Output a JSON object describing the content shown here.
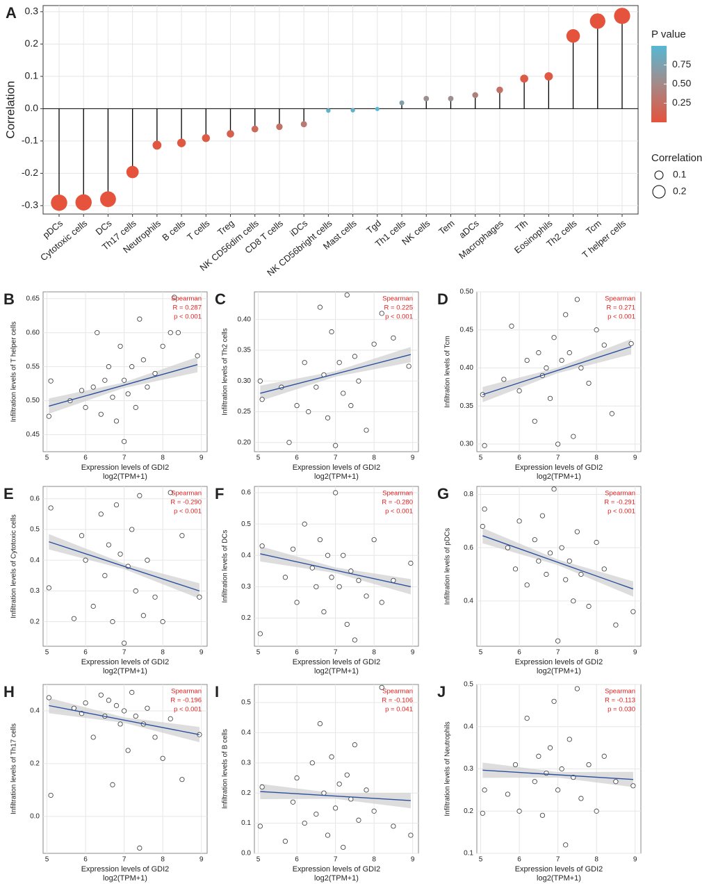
{
  "chart_data": [
    {
      "type": "lollipop",
      "panel": "A",
      "y_label": "Correlation",
      "categories": [
        "pDCs",
        "Cytotoxic cells",
        "DCs",
        "Th17 cells",
        "Neutrophils",
        "B cells",
        "T cells",
        "Treg",
        "NK CD56dim cells",
        "CD8 T cells",
        "iDCs",
        "NK CD56bright cells",
        "Mast cells",
        "Tgd",
        "Th1 cells",
        "NK cells",
        "Tem",
        "aDCs",
        "Macrophages",
        "Tfh",
        "Eosinophils",
        "Th2 cells",
        "Tcm",
        "T helper cells"
      ],
      "values": [
        -0.291,
        -0.29,
        -0.28,
        -0.196,
        -0.113,
        -0.106,
        -0.091,
        -0.078,
        -0.063,
        -0.056,
        -0.048,
        -0.006,
        -0.005,
        -0.001,
        0.018,
        0.031,
        0.031,
        0.042,
        0.058,
        0.093,
        0.1,
        0.225,
        0.271,
        0.287
      ],
      "pvalues": [
        0.0,
        0.0,
        0.0,
        0.0,
        0.03,
        0.04,
        0.07,
        0.12,
        0.2,
        0.27,
        0.35,
        0.91,
        0.92,
        0.99,
        0.72,
        0.55,
        0.55,
        0.41,
        0.27,
        0.07,
        0.05,
        0.0,
        0.0,
        0.0
      ],
      "ylim": [
        -0.326,
        0.319
      ],
      "yticks": [
        -0.3,
        -0.2,
        -0.1,
        {
          "value": 0,
          "label": "0.0"
        },
        0.1,
        0.2,
        0.3
      ],
      "colormap": [
        "#e5533c",
        "#a48a88",
        "#56b8d4"
      ],
      "plim": [
        0,
        1
      ],
      "color_legend_title": "P value",
      "color_legend_ticks": [
        0.25,
        {
          "value": 0.5,
          "label": "0.50"
        },
        0.75
      ],
      "size_legend_title": "Correlation",
      "size_legend_ticks": [
        0.1,
        0.2
      ],
      "grid": true
    },
    {
      "type": "scatter",
      "panel": "B",
      "y_label": "Infiltration levels of T helper cells",
      "x_label": "Expression levels of GDI2",
      "x_sublabel": "log2(TPM+1)",
      "annotations": [
        "Spearman",
        "R = 0.287",
        "p < 0.001"
      ],
      "x": [
        5.05,
        5.1,
        5.6,
        5.9,
        6.0,
        6.2,
        6.3,
        6.4,
        6.5,
        6.6,
        6.7,
        6.8,
        6.9,
        7.0,
        7.0,
        7.1,
        7.2,
        7.3,
        7.4,
        7.5,
        7.6,
        7.8,
        8.0,
        8.2,
        8.3,
        8.4,
        8.9
      ],
      "y": [
        0.477,
        0.529,
        0.5,
        0.515,
        0.49,
        0.52,
        0.6,
        0.48,
        0.53,
        0.55,
        0.505,
        0.47,
        0.58,
        0.44,
        0.53,
        0.51,
        0.55,
        0.49,
        0.62,
        0.56,
        0.52,
        0.54,
        0.58,
        0.6,
        0.652,
        0.6,
        0.566
      ],
      "fit": {
        "x": [
          5.05,
          8.9
        ],
        "y": [
          0.492,
          0.553
        ]
      },
      "xlim": [
        4.9,
        9.15
      ],
      "xticks": [
        5,
        6,
        7,
        8,
        9
      ],
      "ylim": [
        0.425,
        0.66
      ],
      "yticks": [
        0.45,
        {
          "value": 0.5,
          "label": "0.50"
        },
        0.55,
        {
          "value": 0.6,
          "label": "0.60"
        },
        0.65
      ],
      "point_color": "#333333",
      "line_color": "#2a4fa0",
      "annotation_color": "#e02020"
    },
    {
      "type": "scatter",
      "panel": "C",
      "y_label": "Infiltration levels of Th2 cells",
      "x_label": "Expression levels of GDI2",
      "x_sublabel": "log2(TPM+1)",
      "annotations": [
        "Spearman",
        "R = 0.225",
        "p < 0.001"
      ],
      "x": [
        5.05,
        5.1,
        5.6,
        5.8,
        6.0,
        6.2,
        6.3,
        6.5,
        6.6,
        6.7,
        6.8,
        6.9,
        7.0,
        7.1,
        7.2,
        7.3,
        7.4,
        7.5,
        7.6,
        7.8,
        8.0,
        8.2,
        8.5,
        8.9
      ],
      "y": [
        0.3,
        0.27,
        0.29,
        0.2,
        0.26,
        0.33,
        0.25,
        0.29,
        0.42,
        0.31,
        0.24,
        0.38,
        0.195,
        0.33,
        0.28,
        0.44,
        0.26,
        0.34,
        0.3,
        0.22,
        0.36,
        0.41,
        0.37,
        0.324
      ],
      "fit": {
        "x": [
          5.05,
          8.95
        ],
        "y": [
          0.28,
          0.343
        ]
      },
      "xlim": [
        4.9,
        9.15
      ],
      "xticks": [
        5,
        6,
        7,
        8,
        9
      ],
      "ylim": [
        0.185,
        0.445
      ],
      "yticks": [
        {
          "value": 0.2,
          "label": "0.20"
        },
        0.25,
        {
          "value": 0.3,
          "label": "0.30"
        },
        0.35,
        {
          "value": 0.4,
          "label": "0.40"
        }
      ],
      "point_color": "#333333",
      "line_color": "#2a4fa0",
      "annotation_color": "#e02020"
    },
    {
      "type": "scatter",
      "panel": "D",
      "y_label": "Infiltration levels of Tcm",
      "x_label": "Expression levels of GDI2",
      "x_sublabel": "log2(TPM+1)",
      "annotations": [
        "Spearman",
        "R = 0.271",
        "p < 0.001"
      ],
      "x": [
        5.05,
        5.1,
        5.6,
        5.8,
        6.0,
        6.2,
        6.4,
        6.5,
        6.6,
        6.7,
        6.8,
        6.9,
        7.0,
        7.1,
        7.2,
        7.3,
        7.4,
        7.5,
        7.6,
        7.8,
        8.0,
        8.2,
        8.4,
        8.9
      ],
      "y": [
        0.365,
        0.298,
        0.385,
        0.455,
        0.37,
        0.41,
        0.33,
        0.42,
        0.39,
        0.4,
        0.36,
        0.44,
        0.3,
        0.41,
        0.47,
        0.42,
        0.31,
        0.49,
        0.4,
        0.38,
        0.45,
        0.43,
        0.34,
        0.432
      ],
      "fit": {
        "x": [
          5.05,
          8.9
        ],
        "y": [
          0.365,
          0.428
        ]
      },
      "xlim": [
        4.9,
        9.15
      ],
      "xticks": [
        5,
        6,
        7,
        8,
        9
      ],
      "ylim": [
        0.29,
        0.5
      ],
      "yticks": [
        {
          "value": 0.3,
          "label": "0.30"
        },
        0.35,
        {
          "value": 0.4,
          "label": "0.40"
        },
        0.45,
        {
          "value": 0.5,
          "label": "0.50"
        }
      ],
      "point_color": "#333333",
      "line_color": "#2a4fa0",
      "annotation_color": "#e02020"
    },
    {
      "type": "scatter",
      "panel": "E",
      "y_label": "Infiltration levels of Cytotoxic cells",
      "x_label": "Expression levels of GDI2",
      "x_sublabel": "log2(TPM+1)",
      "annotations": [
        "Spearman",
        "R = -0.290",
        "p < 0.001"
      ],
      "x": [
        5.05,
        5.1,
        5.7,
        5.9,
        6.0,
        6.2,
        6.4,
        6.5,
        6.6,
        6.7,
        6.8,
        6.9,
        7.0,
        7.1,
        7.2,
        7.3,
        7.4,
        7.5,
        7.6,
        7.8,
        8.0,
        8.2,
        8.5,
        8.95
      ],
      "y": [
        0.31,
        0.57,
        0.21,
        0.48,
        0.4,
        0.25,
        0.55,
        0.35,
        0.45,
        0.2,
        0.58,
        0.42,
        0.13,
        0.38,
        0.5,
        0.3,
        0.61,
        0.22,
        0.4,
        0.28,
        0.2,
        0.62,
        0.48,
        0.28
      ],
      "fit": {
        "x": [
          5.05,
          8.95
        ],
        "y": [
          0.46,
          0.3
        ]
      },
      "xlim": [
        4.9,
        9.15
      ],
      "xticks": [
        5,
        6,
        7,
        8,
        9
      ],
      "ylim": [
        0.12,
        0.64
      ],
      "yticks": [
        0.2,
        0.3,
        0.4,
        0.5,
        0.6
      ],
      "point_color": "#333333",
      "line_color": "#2a4fa0",
      "annotation_color": "#e02020"
    },
    {
      "type": "scatter",
      "panel": "F",
      "y_label": "Infiltration levels of DCs",
      "x_label": "Expression levels of GDI2",
      "x_sublabel": "log2(TPM+1)",
      "annotations": [
        "Spearman",
        "R = -0.280",
        "p < 0.001"
      ],
      "x": [
        5.05,
        5.1,
        5.7,
        5.9,
        6.0,
        6.2,
        6.4,
        6.5,
        6.6,
        6.7,
        6.8,
        6.9,
        7.0,
        7.1,
        7.2,
        7.3,
        7.4,
        7.5,
        7.6,
        7.8,
        8.0,
        8.2,
        8.5,
        8.95
      ],
      "y": [
        0.15,
        0.43,
        0.33,
        0.42,
        0.25,
        0.5,
        0.36,
        0.3,
        0.45,
        0.22,
        0.4,
        0.33,
        0.6,
        0.3,
        0.4,
        0.18,
        0.35,
        0.13,
        0.32,
        0.27,
        0.45,
        0.25,
        0.32,
        0.375
      ],
      "fit": {
        "x": [
          5.05,
          8.95
        ],
        "y": [
          0.405,
          0.3
        ]
      },
      "xlim": [
        4.9,
        9.15
      ],
      "xticks": [
        5,
        6,
        7,
        8,
        9
      ],
      "ylim": [
        0.11,
        0.62
      ],
      "yticks": [
        0.2,
        0.3,
        0.4,
        0.5,
        0.6
      ],
      "point_color": "#333333",
      "line_color": "#2a4fa0",
      "annotation_color": "#e02020"
    },
    {
      "type": "scatter",
      "panel": "G",
      "y_label": "Infiltration levels of pDCs",
      "x_label": "Expression levels of GDI2",
      "x_sublabel": "log2(TPM+1)",
      "annotations": [
        "Spearman",
        "R = -0.291",
        "p < 0.001"
      ],
      "x": [
        5.05,
        5.1,
        5.7,
        5.9,
        6.0,
        6.2,
        6.4,
        6.5,
        6.6,
        6.7,
        6.8,
        6.9,
        7.0,
        7.1,
        7.2,
        7.3,
        7.4,
        7.5,
        7.6,
        7.8,
        8.0,
        8.2,
        8.5,
        8.95
      ],
      "y": [
        0.68,
        0.745,
        0.6,
        0.52,
        0.7,
        0.46,
        0.63,
        0.55,
        0.72,
        0.5,
        0.58,
        0.82,
        0.25,
        0.6,
        0.48,
        0.55,
        0.4,
        0.66,
        0.5,
        0.38,
        0.62,
        0.52,
        0.31,
        0.36
      ],
      "fit": {
        "x": [
          5.05,
          8.95
        ],
        "y": [
          0.645,
          0.445
        ]
      },
      "xlim": [
        4.9,
        9.15
      ],
      "xticks": [
        5,
        6,
        7,
        8,
        9
      ],
      "ylim": [
        0.23,
        0.83
      ],
      "yticks": [
        0.4,
        0.6,
        0.8
      ],
      "point_color": "#333333",
      "line_color": "#2a4fa0",
      "annotation_color": "#e02020"
    },
    {
      "type": "scatter",
      "panel": "H",
      "y_label": "Infiltration levels of Th17 cells",
      "x_label": "Expression levels of GDI2",
      "x_sublabel": "log2(TPM+1)",
      "annotations": [
        "Spearman",
        "R = -0.196",
        "p < 0.001"
      ],
      "x": [
        5.05,
        5.1,
        5.7,
        5.9,
        6.0,
        6.2,
        6.4,
        6.5,
        6.6,
        6.7,
        6.8,
        6.9,
        7.0,
        7.1,
        7.2,
        7.3,
        7.4,
        7.5,
        7.6,
        7.8,
        8.0,
        8.2,
        8.5,
        8.95
      ],
      "y": [
        0.45,
        0.08,
        0.41,
        0.39,
        0.43,
        0.3,
        0.46,
        0.38,
        0.44,
        0.12,
        0.42,
        0.35,
        0.4,
        0.25,
        0.47,
        0.38,
        -0.12,
        0.35,
        0.41,
        0.3,
        0.22,
        0.37,
        0.14,
        0.31
      ],
      "fit": {
        "x": [
          5.05,
          8.95
        ],
        "y": [
          0.42,
          0.31
        ]
      },
      "xlim": [
        4.9,
        9.15
      ],
      "xticks": [
        5,
        6,
        7,
        8,
        9
      ],
      "ylim": [
        -0.14,
        0.5
      ],
      "yticks": [
        {
          "value": 0,
          "label": "0.0"
        },
        0.2,
        0.4
      ],
      "point_color": "#333333",
      "line_color": "#2a4fa0",
      "annotation_color": "#e02020"
    },
    {
      "type": "scatter",
      "panel": "I",
      "y_label": "Infiltration levels of B cells",
      "x_label": "Expression levels of GDI2",
      "x_sublabel": "log2(TPM+1)",
      "annotations": [
        "Spearman",
        "R = -0.106",
        "p = 0.041"
      ],
      "x": [
        5.05,
        5.1,
        5.7,
        5.9,
        6.0,
        6.2,
        6.4,
        6.5,
        6.6,
        6.7,
        6.8,
        6.9,
        7.0,
        7.1,
        7.2,
        7.3,
        7.4,
        7.5,
        7.6,
        7.8,
        8.0,
        8.2,
        8.5,
        8.95
      ],
      "y": [
        0.09,
        0.22,
        0.04,
        0.17,
        0.25,
        0.1,
        0.3,
        0.13,
        0.43,
        0.2,
        0.06,
        0.32,
        0.15,
        0.23,
        0.02,
        0.26,
        0.18,
        0.36,
        0.11,
        0.21,
        0.14,
        0.55,
        0.09,
        0.06
      ],
      "fit": {
        "x": [
          5.05,
          8.95
        ],
        "y": [
          0.205,
          0.175
        ]
      },
      "xlim": [
        4.9,
        9.15
      ],
      "xticks": [
        5,
        6,
        7,
        8,
        9
      ],
      "ylim": [
        0,
        0.56
      ],
      "yticks": [
        {
          "value": 0,
          "label": "0.0"
        },
        0.1,
        0.2,
        0.3,
        0.4,
        0.5
      ],
      "point_color": "#333333",
      "line_color": "#2a4fa0",
      "annotation_color": "#e02020"
    },
    {
      "type": "scatter",
      "panel": "J",
      "y_label": "Infiltration levels of Neutrophils",
      "x_label": "Expression levels of GDI2",
      "x_sublabel": "log2(TPM+1)",
      "annotations": [
        "Spearman",
        "R = -0.113",
        "p = 0.030"
      ],
      "x": [
        5.05,
        5.1,
        5.7,
        5.9,
        6.0,
        6.2,
        6.4,
        6.5,
        6.6,
        6.7,
        6.8,
        6.9,
        7.0,
        7.1,
        7.2,
        7.3,
        7.4,
        7.5,
        7.6,
        7.8,
        8.0,
        8.2,
        8.5,
        8.95
      ],
      "y": [
        0.195,
        0.25,
        0.24,
        0.31,
        0.2,
        0.42,
        0.27,
        0.33,
        0.19,
        0.29,
        0.35,
        0.46,
        0.25,
        0.3,
        0.12,
        0.37,
        0.28,
        0.49,
        0.23,
        0.31,
        0.2,
        0.33,
        0.27,
        0.26
      ],
      "fit": {
        "x": [
          5.05,
          8.95
        ],
        "y": [
          0.297,
          0.275
        ]
      },
      "xlim": [
        4.9,
        9.15
      ],
      "xticks": [
        5,
        6,
        7,
        8,
        9
      ],
      "ylim": [
        0.1,
        0.5
      ],
      "yticks": [
        0.1,
        0.2,
        0.3,
        0.4,
        0.5
      ],
      "point_color": "#333333",
      "line_color": "#2a4fa0",
      "annotation_color": "#e02020"
    }
  ]
}
